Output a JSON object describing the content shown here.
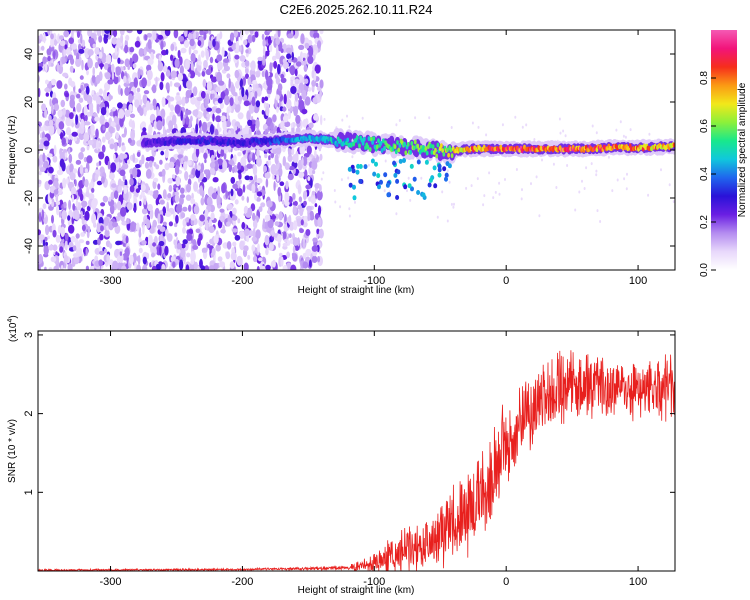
{
  "title": "C2E6.2025.262.10.11.R24",
  "colors": {
    "snr_line": "#e8201e",
    "axis": "#000000",
    "colormap": [
      "#ffffff",
      "#e8d8fb",
      "#b48cf0",
      "#6a1fe3",
      "#2a12d8",
      "#1f66ee",
      "#10c8dc",
      "#18e88c",
      "#8cf03a",
      "#f2e81a",
      "#fb9a14",
      "#f62e1c",
      "#f2147a",
      "#f55ab4"
    ]
  },
  "chart_data": [
    {
      "type": "heatmap",
      "name": "spectrogram",
      "xlabel": "Height of straight line (km)",
      "ylabel": "Frequency (Hz)",
      "xlim": [
        -355,
        128
      ],
      "ylim": [
        -50,
        50
      ],
      "xticks": [
        -300,
        -200,
        -100,
        0,
        100
      ],
      "xtick_labels": [
        "-300",
        "-200",
        "-100",
        "0",
        "100"
      ],
      "yticks": [
        -40,
        -20,
        0,
        20,
        40
      ],
      "ytick_labels": [
        "-40",
        "-20",
        "0",
        "20",
        "40"
      ],
      "noise_region_x": [
        -355,
        -140
      ],
      "signal_track": {
        "x": [
          -270,
          -240,
          -200,
          -170,
          -150,
          -130,
          -110,
          -90,
          -70,
          -55,
          -45,
          -35,
          -25,
          -15,
          0,
          20,
          40,
          60,
          80,
          100,
          128
        ],
        "y": [
          3,
          4,
          3,
          4,
          5,
          4,
          3,
          2,
          1,
          0,
          -1,
          0,
          0.5,
          0.5,
          0.5,
          0.5,
          0.5,
          0.5,
          1,
          1,
          1.5
        ],
        "amplitude": [
          0.28,
          0.35,
          0.3,
          0.4,
          0.48,
          0.5,
          0.55,
          0.6,
          0.62,
          0.65,
          0.7,
          0.78,
          0.85,
          0.9,
          0.92,
          0.95,
          0.94,
          0.92,
          0.88,
          0.85,
          0.82
        ]
      },
      "colorbar": {
        "label": "Normalized spectral amplitude",
        "range": [
          0,
          1
        ],
        "ticks": [
          0,
          0.2,
          0.4,
          0.6,
          0.8
        ],
        "tick_labels": [
          "0.0",
          "0.2",
          "0.4",
          "0.6",
          "0.8"
        ]
      }
    },
    {
      "type": "line",
      "name": "snr",
      "xlabel": "Height of straight line (km)",
      "ylabel": "SNR (10 * v/v)",
      "yscale_label": "(x10",
      "yscale_exp": "4",
      "yscale_close": ")",
      "xlim": [
        -355,
        128
      ],
      "ylim": [
        0,
        3.05
      ],
      "xticks": [
        -300,
        -200,
        -100,
        0,
        100
      ],
      "xtick_labels": [
        "-300",
        "-200",
        "-100",
        "0",
        "100"
      ],
      "yticks": [
        1,
        2,
        3
      ],
      "ytick_labels": [
        "1",
        "2",
        "3"
      ],
      "envelope": {
        "x": [
          -355,
          -200,
          -120,
          -100,
          -90,
          -80,
          -70,
          -60,
          -50,
          -40,
          -30,
          -20,
          -10,
          0,
          10,
          20,
          30,
          40,
          50,
          60,
          80,
          100,
          128
        ],
        "mean": [
          0.01,
          0.02,
          0.04,
          0.1,
          0.18,
          0.25,
          0.3,
          0.38,
          0.5,
          0.62,
          0.75,
          0.95,
          1.3,
          1.6,
          1.85,
          2.05,
          2.2,
          2.35,
          2.35,
          2.35,
          2.35,
          2.3,
          2.3
        ],
        "spread": [
          0.01,
          0.01,
          0.02,
          0.12,
          0.18,
          0.22,
          0.25,
          0.3,
          0.35,
          0.4,
          0.45,
          0.45,
          0.5,
          0.45,
          0.4,
          0.4,
          0.45,
          0.4,
          0.35,
          0.35,
          0.35,
          0.35,
          0.35
        ]
      }
    }
  ]
}
